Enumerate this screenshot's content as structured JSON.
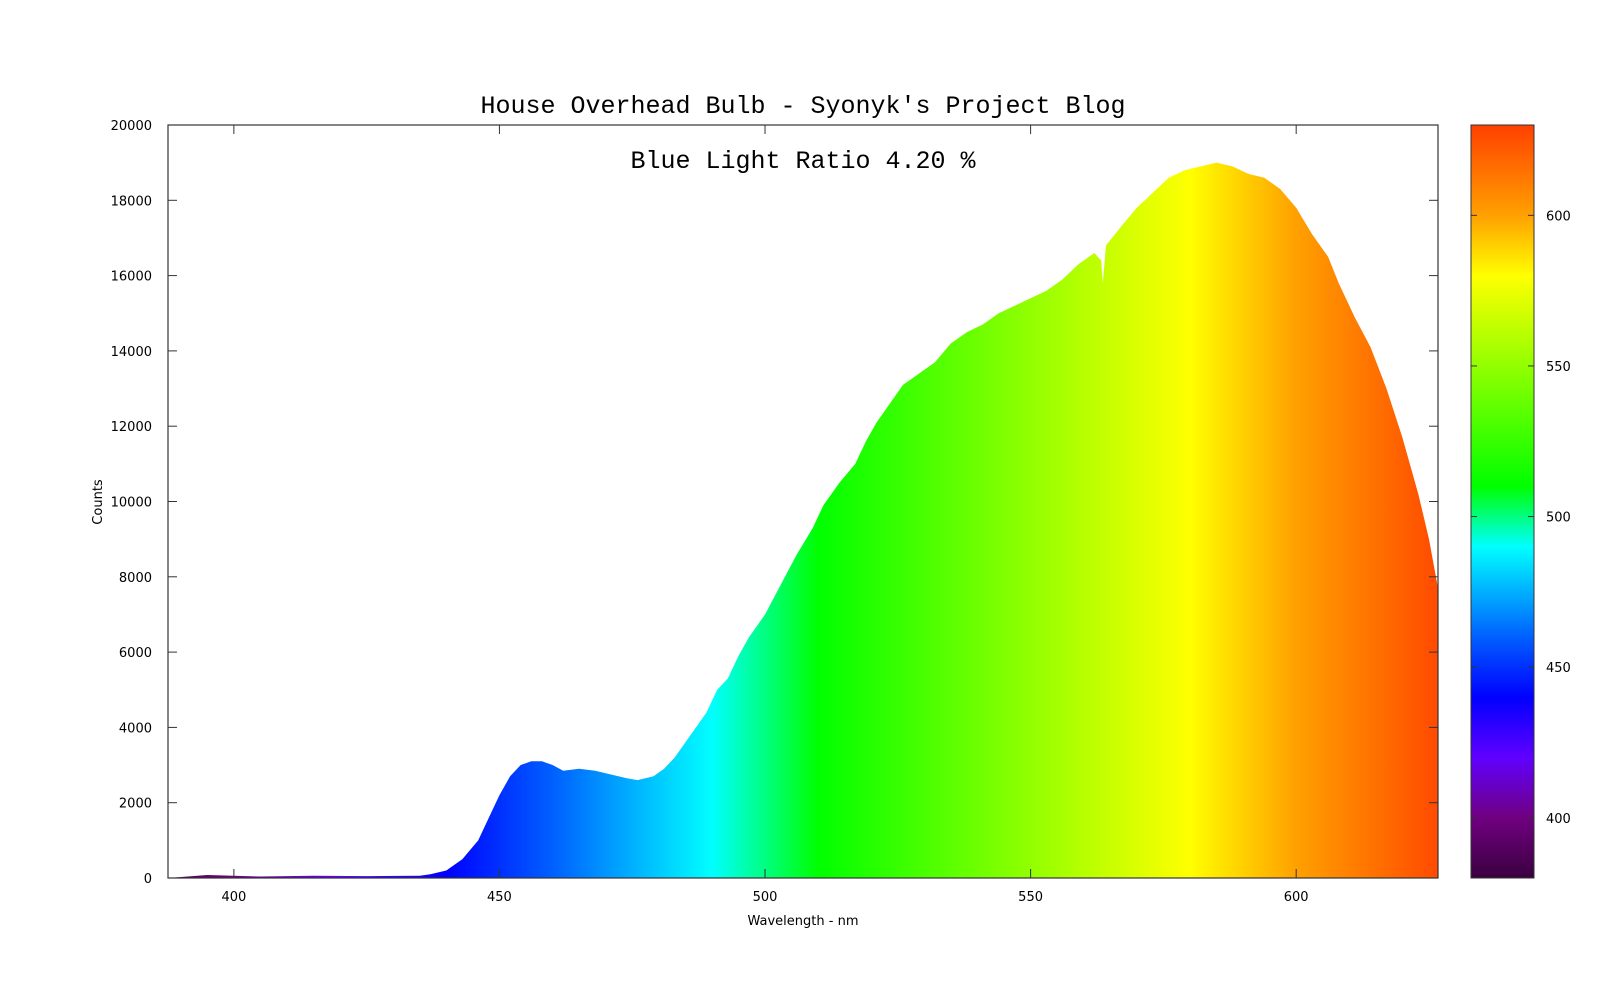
{
  "chart_data": {
    "type": "area",
    "title": "House Overhead Bulb - Syonyk's Project Blog",
    "annotation": "Blue Light Ratio 4.20 %",
    "xlabel": "Wavelength - nm",
    "ylabel": "Counts",
    "xlim": [
      387.6,
      626.7
    ],
    "ylim": [
      0,
      20000
    ],
    "xticks": [
      400,
      450,
      500,
      550,
      600
    ],
    "yticks": [
      0,
      2000,
      4000,
      6000,
      8000,
      10000,
      12000,
      14000,
      16000,
      18000,
      20000
    ],
    "grid": false,
    "fill": "wavelength-colored spectrum",
    "x": [
      387.6,
      395,
      405,
      415,
      425,
      435,
      437,
      440,
      443,
      446,
      448,
      450,
      452,
      454,
      456,
      458,
      460,
      462,
      465,
      468,
      471,
      474,
      476,
      479,
      481,
      483,
      485,
      487,
      489,
      491,
      493,
      495,
      497,
      500,
      503,
      506,
      509,
      511,
      514,
      517,
      519,
      521,
      524,
      526,
      529,
      532,
      535,
      538,
      541,
      544,
      547,
      550,
      553,
      556,
      559,
      562,
      563.3,
      563.6,
      564.2,
      567,
      570,
      573,
      576,
      579,
      582,
      585,
      588,
      591,
      594,
      597,
      600,
      603,
      606,
      608,
      611,
      614,
      617,
      620,
      623,
      625,
      626.7
    ],
    "y": [
      0,
      80,
      40,
      60,
      50,
      60,
      100,
      200,
      500,
      1000,
      1600,
      2200,
      2700,
      3000,
      3100,
      3100,
      3000,
      2850,
      2900,
      2850,
      2750,
      2650,
      2600,
      2700,
      2900,
      3200,
      3600,
      4000,
      4400,
      5000,
      5300,
      5900,
      6400,
      7000,
      7800,
      8600,
      9300,
      9900,
      10500,
      11000,
      11600,
      12100,
      12700,
      13100,
      13400,
      13700,
      14200,
      14500,
      14700,
      15000,
      15200,
      15400,
      15600,
      15900,
      16300,
      16600,
      16400,
      15800,
      16800,
      17300,
      17800,
      18200,
      18600,
      18800,
      18900,
      19000,
      18900,
      18700,
      18600,
      18300,
      17800,
      17100,
      16500,
      15800,
      14900,
      14100,
      13000,
      11700,
      10200,
      9000,
      7700
    ],
    "colorbar": {
      "range": [
        380,
        630
      ],
      "ticks": [
        400,
        450,
        500,
        550,
        600
      ],
      "colormap": [
        {
          "nm": 380,
          "color": "#3a0040"
        },
        {
          "nm": 400,
          "color": "#700080"
        },
        {
          "nm": 420,
          "color": "#6000ff"
        },
        {
          "nm": 440,
          "color": "#0000ff"
        },
        {
          "nm": 460,
          "color": "#0060ff"
        },
        {
          "nm": 490,
          "color": "#00ffff"
        },
        {
          "nm": 510,
          "color": "#00ff00"
        },
        {
          "nm": 545,
          "color": "#80ff00"
        },
        {
          "nm": 580,
          "color": "#ffff00"
        },
        {
          "nm": 600,
          "color": "#ffa000"
        },
        {
          "nm": 630,
          "color": "#ff4000"
        }
      ]
    }
  }
}
